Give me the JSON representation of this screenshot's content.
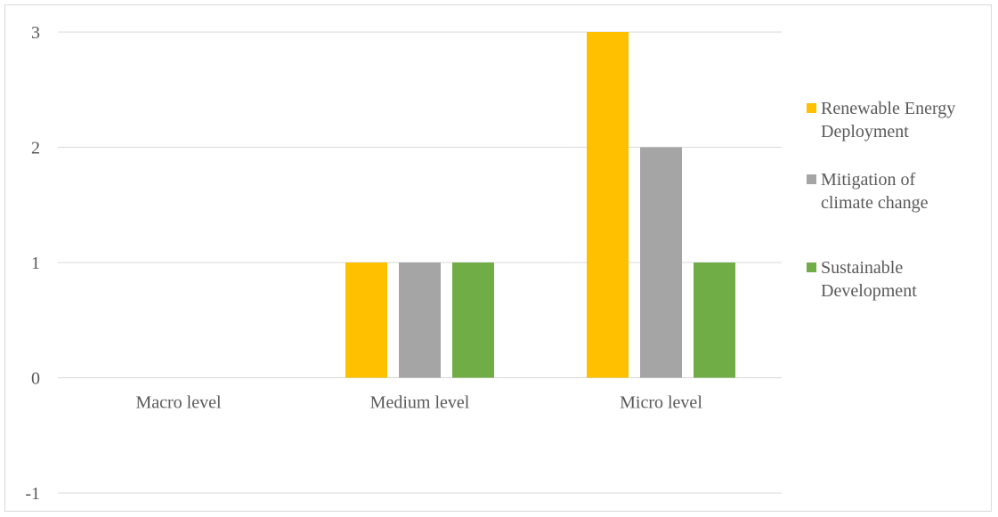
{
  "chart_data": {
    "type": "bar",
    "categories": [
      "Macro level",
      "Medium level",
      "Micro level"
    ],
    "series": [
      {
        "name": "Renewable Energy Deployment",
        "color": "#FFC000",
        "values": [
          0,
          1,
          3
        ]
      },
      {
        "name": "Mitigation of climate change",
        "color": "#A5A5A5",
        "values": [
          0,
          1,
          2
        ]
      },
      {
        "name": "Sustainable Development",
        "color": "#70AD47",
        "values": [
          0,
          1,
          1
        ]
      }
    ],
    "ylim": [
      -1,
      3
    ],
    "yticks": [
      "3",
      "2",
      "1",
      "0",
      "-1"
    ],
    "grid": true,
    "legend_position": "right",
    "legend_lines": [
      [
        "Renewable Energy",
        "Deployment"
      ],
      [
        "Mitigation of",
        "climate change"
      ],
      [
        "Sustainable",
        "Development"
      ]
    ]
  }
}
